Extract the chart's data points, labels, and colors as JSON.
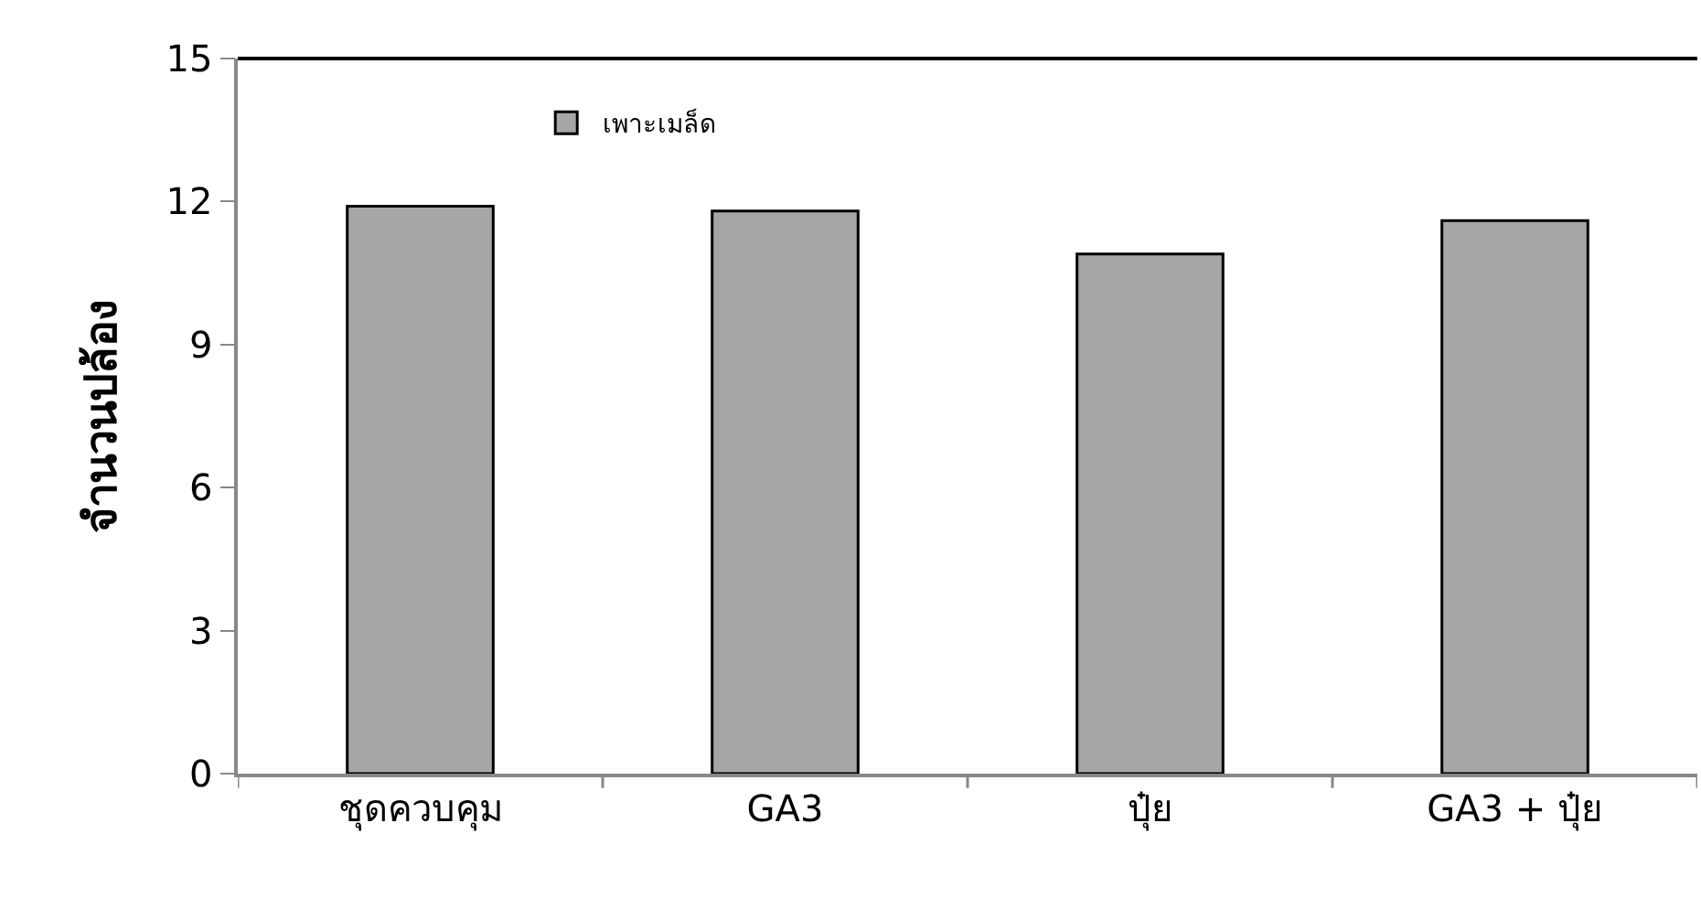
{
  "chart_data": {
    "type": "bar",
    "ylabel": "จำนวนปล้อง",
    "categories": [
      "ชุดควบคุม",
      "GA3",
      "ปุ๋ย",
      "GA3 + ปุ๋ย"
    ],
    "series": [
      {
        "name": "เพาะเมล็ด",
        "color": "#a6a6a6",
        "values": [
          11.9,
          11.8,
          10.9,
          11.6
        ]
      }
    ],
    "ylim": [
      0,
      15
    ],
    "yticks": [
      0,
      3,
      6,
      9,
      12,
      15
    ],
    "grid": false,
    "legend": "top left"
  }
}
